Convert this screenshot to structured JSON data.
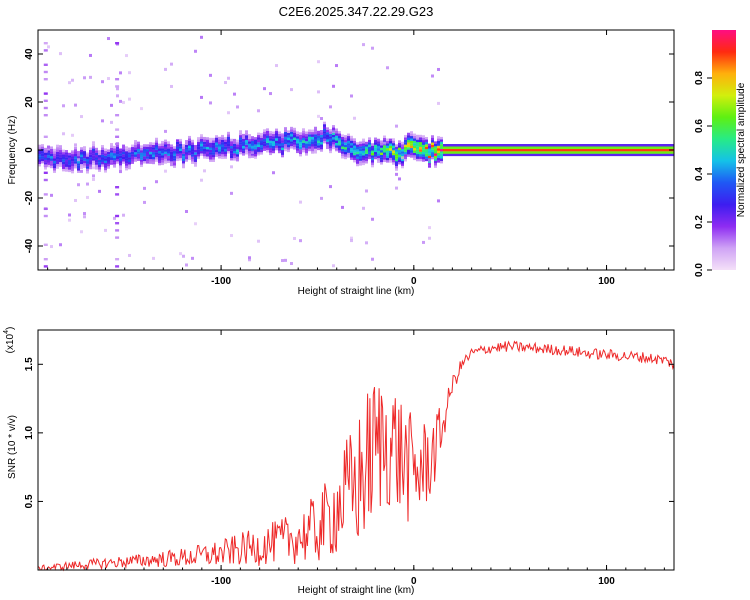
{
  "title": "C2E6.2025.347.22.29.G23",
  "chart_data": [
    {
      "type": "heatmap",
      "name": "spectrogram",
      "xlabel": "Height of straight line (km)",
      "ylabel": "Frequency (Hz)",
      "xlim": [
        -195,
        135
      ],
      "ylim": [
        -50,
        50
      ],
      "xticks": [
        -100,
        0,
        100
      ],
      "xtick_labels": [
        "-100",
        "0",
        "100"
      ],
      "yticks": [
        -40,
        -20,
        0,
        20,
        40
      ],
      "ytick_labels": [
        "-40",
        "-20",
        "0",
        "20",
        "40"
      ],
      "ridge_frequency": {
        "x": [
          -195,
          -180,
          -160,
          -140,
          -120,
          -100,
          -80,
          -60,
          -48,
          -40,
          -35,
          -30,
          -20,
          -10,
          0,
          5,
          10,
          14,
          30,
          60,
          100,
          135
        ],
        "y": [
          -3,
          -4,
          -3,
          -2,
          -1,
          1,
          2,
          4,
          6,
          5,
          0,
          -1,
          -1,
          -1,
          1,
          0,
          -1,
          0,
          0,
          0,
          0,
          0
        ]
      },
      "ridge_peak_amplitude": {
        "x": [
          -195,
          -100,
          -50,
          -20,
          0,
          15,
          135
        ],
        "y": [
          0.35,
          0.4,
          0.45,
          0.55,
          0.75,
          0.9,
          0.9
        ]
      },
      "colorbar": {
        "label": "Normalized spectral amplitude",
        "range": [
          0.0,
          1.0
        ],
        "ticks": [
          0.0,
          0.2,
          0.4,
          0.6,
          0.8
        ],
        "tick_labels": [
          "0.0",
          "0.2",
          "0.4",
          "0.6",
          "0.8"
        ],
        "colormap": [
          "#f4e0f8",
          "#cfa3f5",
          "#8e2cf2",
          "#3d1df0",
          "#1f58f5",
          "#14c2e8",
          "#27eb86",
          "#5ef012",
          "#d2ef0d",
          "#ffb00c",
          "#ff2a10",
          "#ff0d82"
        ]
      }
    },
    {
      "type": "line",
      "name": "snr",
      "xlabel": "Height of straight line (km)",
      "ylabel": "SNR (10 * v/v)",
      "y_multiplier_label": "(x10",
      "y_multiplier_exponent": "4",
      "xlim": [
        -195,
        135
      ],
      "ylim": [
        0,
        1.75
      ],
      "xticks": [
        -100,
        0,
        100
      ],
      "xtick_labels": [
        "-100",
        "0",
        "100"
      ],
      "yticks": [
        0.5,
        1.0,
        1.5
      ],
      "ytick_labels": [
        "0.5",
        "1.0",
        "1.5"
      ],
      "series": [
        {
          "name": "SNR",
          "color": "#ee2a2a",
          "x": [
            -195,
            -180,
            -160,
            -140,
            -120,
            -100,
            -90,
            -80,
            -70,
            -60,
            -50,
            -45,
            -40,
            -35,
            -30,
            -25,
            -20,
            -15,
            -10,
            -5,
            0,
            5,
            10,
            15,
            20,
            25,
            30,
            40,
            50,
            60,
            70,
            80,
            90,
            100,
            110,
            120,
            130,
            135
          ],
          "y": [
            0.01,
            0.03,
            0.05,
            0.07,
            0.09,
            0.12,
            0.15,
            0.17,
            0.21,
            0.24,
            0.3,
            0.36,
            0.45,
            0.55,
            0.6,
            0.75,
            0.9,
            0.95,
            0.9,
            0.8,
            0.7,
            0.75,
            0.85,
            1.05,
            1.35,
            1.5,
            1.58,
            1.62,
            1.63,
            1.62,
            1.61,
            1.6,
            1.58,
            1.57,
            1.56,
            1.55,
            1.53,
            1.5
          ],
          "noise_amplitude": [
            0.02,
            0.03,
            0.04,
            0.05,
            0.07,
            0.1,
            0.12,
            0.14,
            0.16,
            0.2,
            0.26,
            0.3,
            0.35,
            0.42,
            0.5,
            0.55,
            0.55,
            0.5,
            0.5,
            0.45,
            0.4,
            0.35,
            0.3,
            0.15,
            0.07,
            0.05,
            0.04,
            0.04,
            0.04,
            0.04,
            0.04,
            0.04,
            0.04,
            0.04,
            0.04,
            0.04,
            0.04,
            0.04
          ]
        }
      ]
    }
  ]
}
